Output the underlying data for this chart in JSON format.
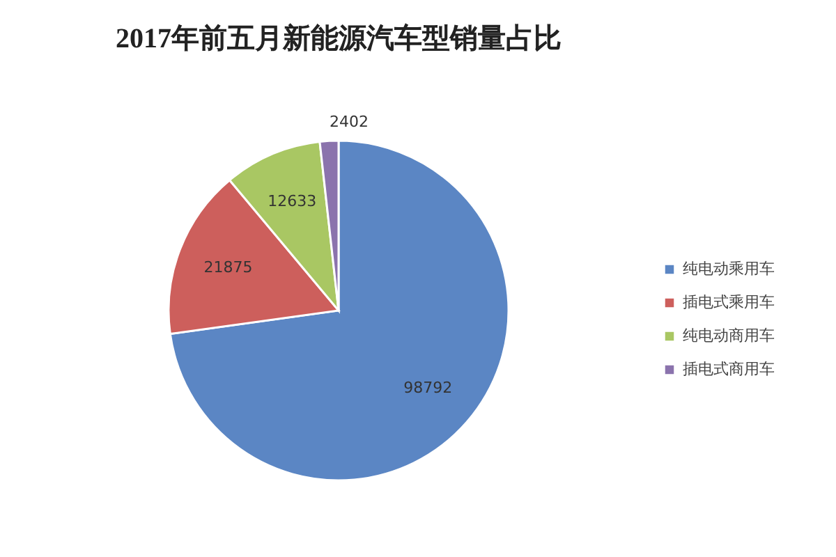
{
  "chart_data": {
    "type": "pie",
    "title": "2017年前五月新能源汽车型销量占比",
    "categories": [
      "纯电动乘用车",
      "插电式乘用车",
      "纯电动商用车",
      "插电式商用车"
    ],
    "values": [
      98792,
      21875,
      12633,
      2402
    ],
    "colors": [
      "#5b86c4",
      "#cd5f5c",
      "#a9c763",
      "#8b73ad"
    ],
    "data_labels": true,
    "legend": "right"
  }
}
